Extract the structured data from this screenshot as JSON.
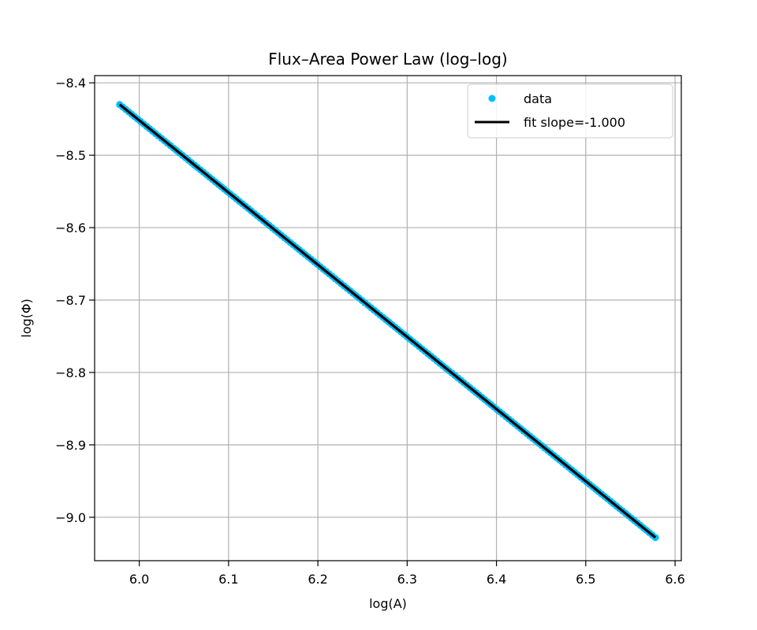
{
  "chart_data": {
    "type": "scatter",
    "title": "Flux–Area Power Law (log–log)",
    "xlabel": "log(A)",
    "ylabel": "log(Φ)",
    "xlim": [
      5.95,
      6.607
    ],
    "ylim": [
      -9.06,
      -8.39
    ],
    "x_ticks": [
      6.0,
      6.1,
      6.2,
      6.3,
      6.4,
      6.5,
      6.6
    ],
    "x_tick_labels": [
      "6.0",
      "6.1",
      "6.2",
      "6.3",
      "6.4",
      "6.5",
      "6.6"
    ],
    "y_ticks": [
      -8.4,
      -8.5,
      -8.6,
      -8.7,
      -8.8,
      -8.9,
      -9.0
    ],
    "y_tick_labels": [
      "−8.4",
      "−8.5",
      "−8.6",
      "−8.7",
      "−8.8",
      "−8.9",
      "−9.0"
    ],
    "grid": true,
    "legend_position": "top-right",
    "series": [
      {
        "name": "data",
        "kind": "scatter",
        "color": "#00bfff",
        "x_start": 5.978,
        "x_end": 6.578,
        "y_start": -8.43,
        "y_end": -9.028
      },
      {
        "name": "fit slope=-1.000",
        "kind": "line",
        "color": "#000000",
        "slope": -1.0,
        "x": [
          5.978,
          6.578
        ],
        "y": [
          -8.43,
          -9.028
        ]
      }
    ]
  }
}
